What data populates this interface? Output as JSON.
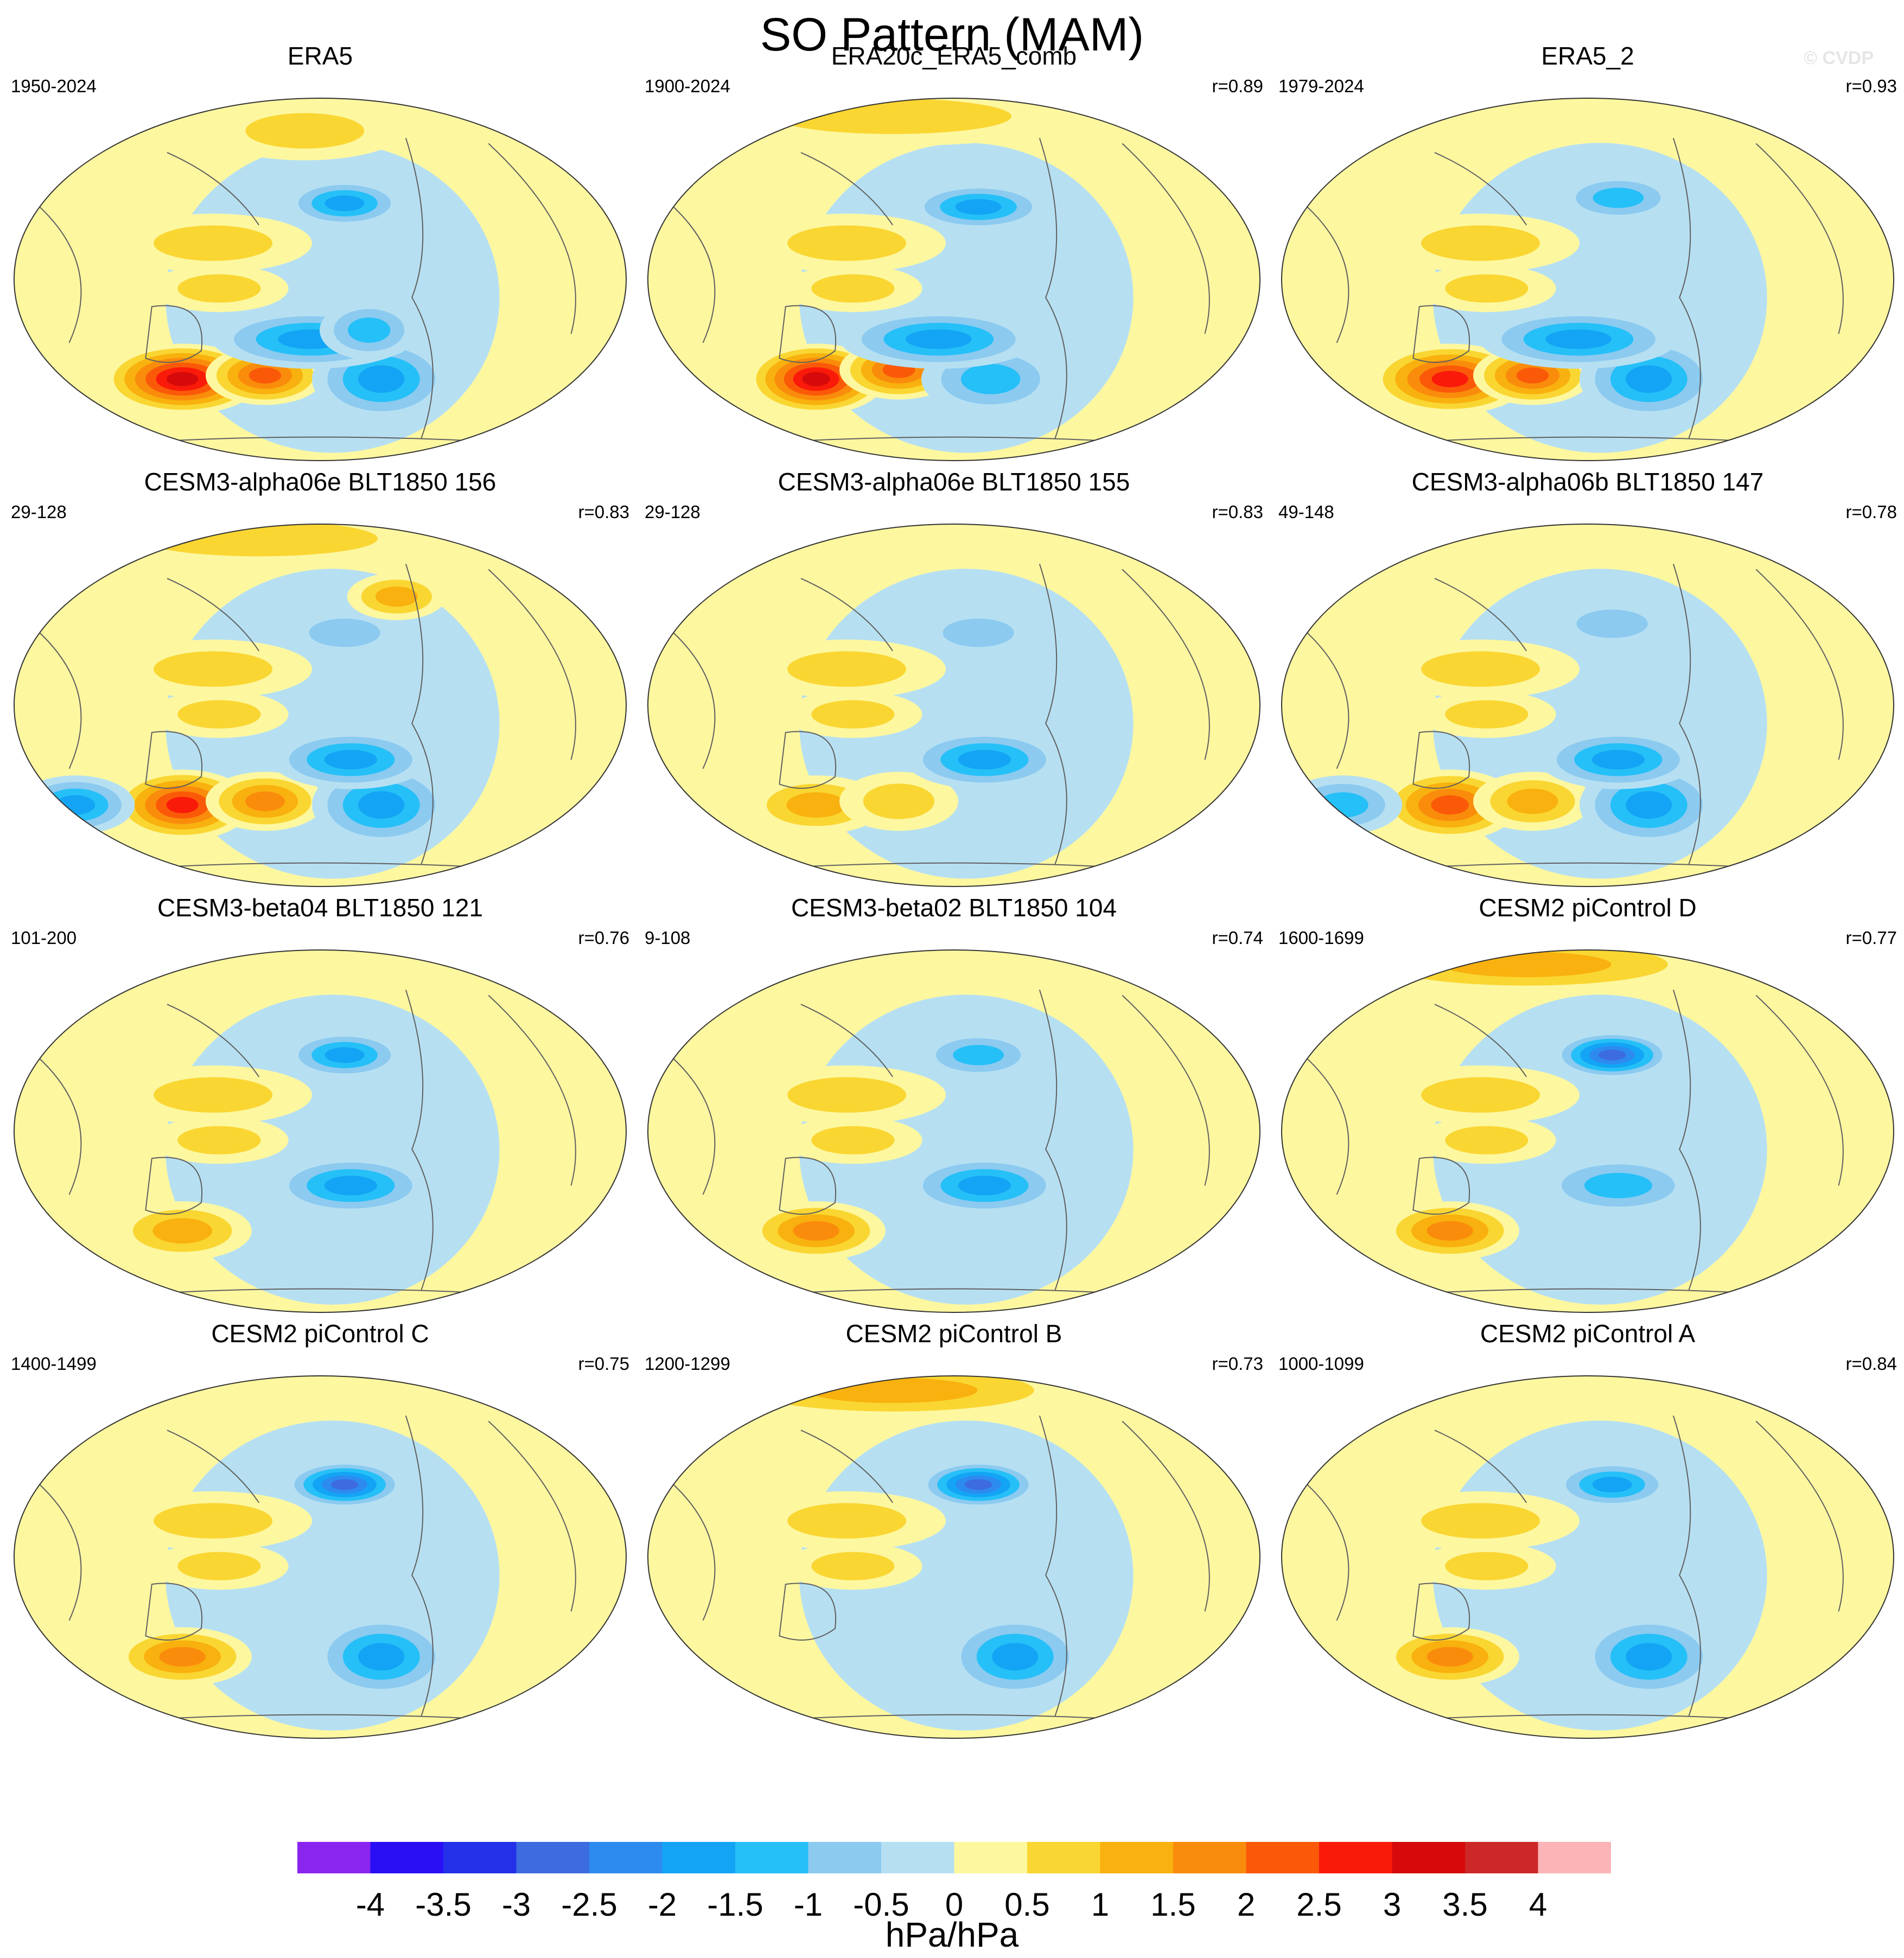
{
  "figure": {
    "title": "SO Pattern (MAM)",
    "watermark": "© CVDP"
  },
  "chart_data": {
    "type": "map-contour",
    "variable": "Sea level pressure regression pattern (Southern Oscillation)",
    "season": "MAM",
    "units": "hPa/hPa",
    "colorbar": {
      "levels": [
        -4,
        -3.5,
        -3,
        -2.5,
        -2,
        -1.5,
        -1,
        -0.5,
        0,
        0.5,
        1,
        1.5,
        2,
        2.5,
        3,
        3.5,
        4
      ],
      "tick_labels": [
        "-4",
        "-3.5",
        "-3",
        "-2.5",
        "-2",
        "-1.5",
        "-1",
        "-0.5",
        "0",
        "0.5",
        "1",
        "1.5",
        "2",
        "2.5",
        "3",
        "3.5",
        "4"
      ],
      "colors": [
        "#8a25f0",
        "#2a0ff5",
        "#2431e8",
        "#3d6be0",
        "#2d8bf0",
        "#14a4f5",
        "#25c0f7",
        "#8ccaf0",
        "#b6e0f2",
        "#fdf7a0",
        "#fad632",
        "#f8b10e",
        "#fa8c0c",
        "#fa5a08",
        "#fa1a0a",
        "#d60a0a",
        "#cc2828",
        "#fcb4b6"
      ]
    },
    "panels": [
      {
        "title": "ERA5",
        "years": "1950-2024",
        "r": "",
        "features": [
          [
            -0.45,
            -0.55,
            0.08,
            0.06,
            3.3
          ],
          [
            -0.18,
            -0.53,
            0.06,
            0.05,
            2.3
          ],
          [
            0.2,
            -0.55,
            0.07,
            0.07,
            -1.6
          ],
          [
            -0.03,
            -0.33,
            0.1,
            0.05,
            -1.7
          ],
          [
            0.16,
            -0.28,
            0.05,
            0.05,
            -1.4
          ],
          [
            0.08,
            0.42,
            0.06,
            0.04,
            -1.6
          ],
          [
            -0.33,
            -0.05,
            0.07,
            0.04,
            0.9
          ],
          [
            -0.35,
            0.2,
            0.1,
            0.05,
            0.7
          ],
          [
            -0.05,
            0.82,
            0.1,
            0.05,
            0.6
          ]
        ]
      },
      {
        "title": "ERA20c_ERA5_comb",
        "years": "1900-2024",
        "r": "r=0.89",
        "features": [
          [
            -0.45,
            -0.55,
            0.07,
            0.06,
            3.4
          ],
          [
            -0.18,
            -0.5,
            0.06,
            0.05,
            2.4
          ],
          [
            0.12,
            -0.55,
            0.07,
            0.06,
            -1.3
          ],
          [
            -0.05,
            -0.33,
            0.1,
            0.05,
            -1.8
          ],
          [
            0.08,
            0.4,
            0.07,
            0.04,
            -1.7
          ],
          [
            -0.33,
            -0.05,
            0.07,
            0.04,
            0.9
          ],
          [
            -0.35,
            0.2,
            0.1,
            0.05,
            0.6
          ],
          [
            -0.2,
            0.9,
            0.2,
            0.05,
            1.0
          ]
        ]
      },
      {
        "title": "ERA5_2",
        "years": "1979-2024",
        "r": "r=0.93",
        "features": [
          [
            -0.45,
            -0.55,
            0.08,
            0.06,
            3.0
          ],
          [
            -0.18,
            -0.53,
            0.06,
            0.05,
            2.2
          ],
          [
            0.2,
            -0.55,
            0.07,
            0.07,
            -1.7
          ],
          [
            -0.03,
            -0.33,
            0.1,
            0.05,
            -1.6
          ],
          [
            0.1,
            0.45,
            0.06,
            0.04,
            -1.5
          ],
          [
            -0.33,
            -0.05,
            0.07,
            0.04,
            0.9
          ],
          [
            -0.35,
            0.2,
            0.1,
            0.05,
            0.8
          ]
        ]
      },
      {
        "title": "CESM3-alpha06e BLT1850 156",
        "years": "29-128",
        "r": "r=0.83",
        "features": [
          [
            -0.45,
            -0.55,
            0.07,
            0.06,
            2.6
          ],
          [
            -0.18,
            -0.53,
            0.06,
            0.05,
            1.8
          ],
          [
            0.2,
            -0.55,
            0.07,
            0.07,
            -1.9
          ],
          [
            -0.8,
            -0.55,
            0.06,
            0.05,
            -1.6
          ],
          [
            0.1,
            -0.3,
            0.08,
            0.05,
            -1.6
          ],
          [
            0.08,
            0.4,
            0.06,
            0.04,
            -1.0
          ],
          [
            -0.33,
            -0.05,
            0.07,
            0.04,
            0.9
          ],
          [
            -0.35,
            0.2,
            0.1,
            0.05,
            0.8
          ],
          [
            0.25,
            0.6,
            0.05,
            0.04,
            1.4
          ],
          [
            -0.2,
            0.92,
            0.2,
            0.05,
            1.0
          ]
        ]
      },
      {
        "title": "CESM3-alpha06e BLT1850 155",
        "years": "29-128",
        "r": "r=0.83",
        "features": [
          [
            -0.45,
            -0.55,
            0.07,
            0.05,
            1.3
          ],
          [
            -0.18,
            -0.53,
            0.06,
            0.05,
            1.0
          ],
          [
            0.1,
            -0.3,
            0.08,
            0.05,
            -1.7
          ],
          [
            0.08,
            0.4,
            0.06,
            0.04,
            -1.0
          ],
          [
            -0.33,
            -0.05,
            0.07,
            0.04,
            0.9
          ],
          [
            -0.35,
            0.2,
            0.1,
            0.05,
            0.8
          ]
        ]
      },
      {
        "title": "CESM3-alpha06b BLT1850 147",
        "years": "49-148",
        "r": "r=0.78",
        "features": [
          [
            -0.45,
            -0.55,
            0.07,
            0.06,
            2.1
          ],
          [
            -0.18,
            -0.53,
            0.06,
            0.05,
            1.5
          ],
          [
            0.2,
            -0.55,
            0.07,
            0.07,
            -1.8
          ],
          [
            -0.8,
            -0.55,
            0.06,
            0.05,
            -1.4
          ],
          [
            0.1,
            -0.3,
            0.08,
            0.05,
            -1.7
          ],
          [
            0.08,
            0.45,
            0.06,
            0.04,
            -1.0
          ],
          [
            -0.33,
            -0.05,
            0.07,
            0.04,
            0.9
          ],
          [
            -0.35,
            0.2,
            0.1,
            0.05,
            0.8
          ]
        ]
      },
      {
        "title": "CESM3-beta04 BLT1850 121",
        "years": "101-200",
        "r": "r=0.76",
        "features": [
          [
            -0.45,
            -0.55,
            0.07,
            0.05,
            1.5
          ],
          [
            0.1,
            -0.3,
            0.08,
            0.05,
            -1.7
          ],
          [
            0.08,
            0.42,
            0.06,
            0.04,
            -1.8
          ],
          [
            -0.33,
            -0.05,
            0.07,
            0.04,
            0.9
          ],
          [
            -0.35,
            0.2,
            0.1,
            0.05,
            0.8
          ]
        ]
      },
      {
        "title": "CESM3-beta02 BLT1850 104",
        "years": "9-108",
        "r": "r=0.74",
        "features": [
          [
            -0.45,
            -0.55,
            0.07,
            0.05,
            1.7
          ],
          [
            0.1,
            -0.3,
            0.08,
            0.05,
            -1.8
          ],
          [
            0.08,
            0.42,
            0.06,
            0.04,
            -1.1
          ],
          [
            -0.33,
            -0.05,
            0.07,
            0.04,
            0.9
          ],
          [
            -0.35,
            0.2,
            0.1,
            0.05,
            0.8
          ]
        ]
      },
      {
        "title": "CESM2 piControl D",
        "years": "1600-1699",
        "r": "r=0.77",
        "features": [
          [
            -0.45,
            -0.55,
            0.07,
            0.05,
            1.7
          ],
          [
            0.1,
            -0.3,
            0.08,
            0.05,
            -1.5
          ],
          [
            0.08,
            0.42,
            0.06,
            0.04,
            -2.7
          ],
          [
            -0.33,
            -0.05,
            0.07,
            0.04,
            0.9
          ],
          [
            -0.35,
            0.2,
            0.1,
            0.05,
            0.8
          ],
          [
            -0.2,
            0.92,
            0.2,
            0.05,
            1.3
          ]
        ]
      },
      {
        "title": "CESM2 piControl C",
        "years": "1400-1499",
        "r": "r=0.75",
        "features": [
          [
            -0.45,
            -0.55,
            0.07,
            0.05,
            2.0
          ],
          [
            0.2,
            -0.55,
            0.07,
            0.07,
            -1.8
          ],
          [
            0.08,
            0.4,
            0.06,
            0.04,
            -2.8
          ],
          [
            -0.33,
            -0.05,
            0.07,
            0.04,
            0.9
          ],
          [
            -0.35,
            0.2,
            0.1,
            0.05,
            0.8
          ]
        ]
      },
      {
        "title": "CESM2 piControl B",
        "years": "1200-1299",
        "r": "r=0.73",
        "features": [
          [
            0.2,
            -0.55,
            0.07,
            0.07,
            -1.7
          ],
          [
            0.08,
            0.4,
            0.06,
            0.04,
            -3.0
          ],
          [
            -0.33,
            -0.05,
            0.07,
            0.04,
            0.9
          ],
          [
            -0.35,
            0.2,
            0.1,
            0.05,
            0.8
          ],
          [
            -0.2,
            0.92,
            0.2,
            0.05,
            1.2
          ]
        ]
      },
      {
        "title": "CESM2 piControl A",
        "years": "1000-1099",
        "r": "r=0.84",
        "features": [
          [
            -0.45,
            -0.55,
            0.07,
            0.05,
            2.0
          ],
          [
            0.2,
            -0.55,
            0.07,
            0.07,
            -1.9
          ],
          [
            0.08,
            0.4,
            0.06,
            0.04,
            -2.0
          ],
          [
            -0.33,
            -0.05,
            0.07,
            0.04,
            0.9
          ],
          [
            -0.35,
            0.2,
            0.1,
            0.05,
            0.8
          ]
        ]
      }
    ]
  }
}
